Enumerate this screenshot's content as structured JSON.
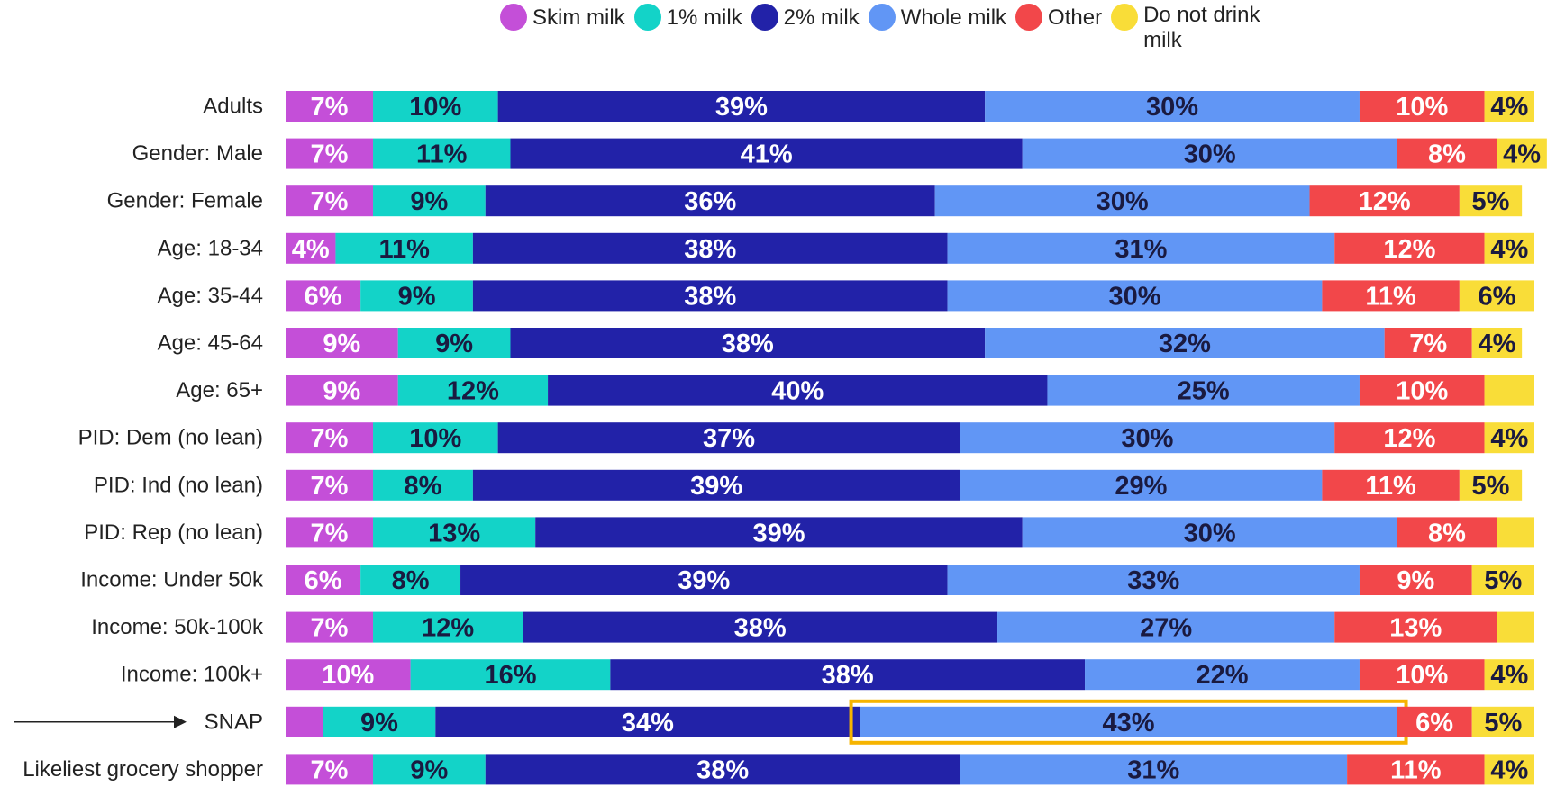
{
  "chart_data": {
    "type": "stacked-bar-horizontal",
    "categories": [
      "Adults",
      "Gender: Male",
      "Gender: Female",
      "Age: 18-34",
      "Age: 35-44",
      "Age: 45-64",
      "Age: 65+",
      "PID: Dem (no lean)",
      "PID: Ind (no lean)",
      "PID: Rep (no lean)",
      "Income: Under 50k",
      "Income: 50k-100k",
      "Income: 100k+",
      "SNAP",
      "Likeliest grocery shopper"
    ],
    "xlim": [
      0,
      100
    ],
    "legend": "top",
    "series": [
      {
        "name": "Skim milk",
        "color": "#c44fd8",
        "label_color": "#ffffff",
        "values": [
          7,
          7,
          7,
          4,
          6,
          9,
          9,
          7,
          7,
          7,
          6,
          7,
          10,
          3,
          7
        ],
        "value_labels": [
          "7%",
          "7%",
          "7%",
          "4%",
          "6%",
          "9%",
          "9%",
          "7%",
          "7%",
          "7%",
          "6%",
          "7%",
          "10%",
          null,
          "7%"
        ]
      },
      {
        "name": "1% milk",
        "color": "#13d3c8",
        "label_color": "#1a1a40",
        "values": [
          10,
          11,
          9,
          11,
          9,
          9,
          12,
          10,
          8,
          13,
          8,
          12,
          16,
          9,
          9
        ],
        "value_labels": [
          "10%",
          "11%",
          "9%",
          "11%",
          "9%",
          "9%",
          "12%",
          "10%",
          "8%",
          "13%",
          "8%",
          "12%",
          "16%",
          "9%",
          "9%"
        ]
      },
      {
        "name": "2% milk",
        "color": "#2222a8",
        "label_color": "#ffffff",
        "values": [
          39,
          41,
          36,
          38,
          38,
          38,
          40,
          37,
          39,
          39,
          39,
          38,
          38,
          34,
          38
        ],
        "value_labels": [
          "39%",
          "41%",
          "36%",
          "38%",
          "38%",
          "38%",
          "40%",
          "37%",
          "39%",
          "39%",
          "39%",
          "38%",
          "38%",
          "34%",
          "38%"
        ]
      },
      {
        "name": "Whole milk",
        "color": "#6196f5",
        "label_color": "#1a1a40",
        "values": [
          30,
          30,
          30,
          31,
          30,
          32,
          25,
          30,
          29,
          30,
          33,
          27,
          22,
          43,
          31
        ],
        "value_labels": [
          "30%",
          "30%",
          "30%",
          "31%",
          "30%",
          "32%",
          "25%",
          "30%",
          "29%",
          "30%",
          "33%",
          "27%",
          "22%",
          "43%",
          "31%"
        ]
      },
      {
        "name": "Other",
        "color": "#f2474a",
        "label_color": "#ffffff",
        "values": [
          10,
          8,
          12,
          12,
          11,
          7,
          10,
          12,
          11,
          8,
          9,
          13,
          10,
          6,
          11
        ],
        "value_labels": [
          "10%",
          "8%",
          "12%",
          "12%",
          "11%",
          "7%",
          "10%",
          "12%",
          "11%",
          "8%",
          "9%",
          "13%",
          "10%",
          "6%",
          "11%"
        ]
      },
      {
        "name": "Do not drink milk",
        "color": "#f9dd38",
        "label_color": "#1a1a40",
        "values": [
          4,
          4,
          5,
          4,
          6,
          4,
          4,
          4,
          5,
          3,
          5,
          3,
          4,
          5,
          4
        ],
        "value_labels": [
          "4%",
          "4%",
          "5%",
          "4%",
          "6%",
          "4%",
          null,
          "4%",
          "5%",
          null,
          "5%",
          null,
          "4%",
          "5%",
          "4%"
        ]
      }
    ]
  }
}
